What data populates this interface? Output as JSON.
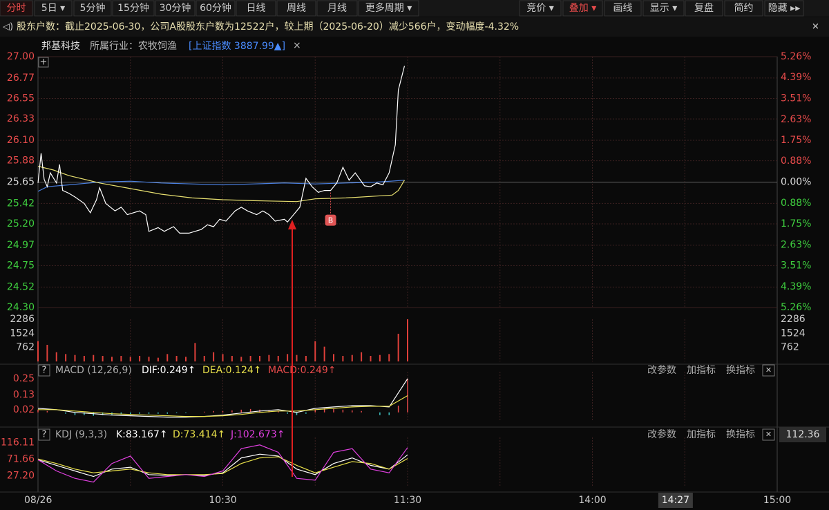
{
  "toolbar": {
    "tabs": [
      "分时",
      "5日 ▾",
      "5分钟",
      "15分钟",
      "30分钟",
      "60分钟",
      "日线",
      "周线",
      "月线",
      "更多周期 ▾"
    ],
    "right_buttons": [
      "竞价 ▾",
      "叠加 ▾",
      "画线",
      "显示 ▾",
      "复盘",
      "简约",
      "隐藏 ▸▸"
    ]
  },
  "notice": {
    "icon": "◁)",
    "text": "股东户数：截止2025-06-30，公司A股股东户数为12522户，较上期（2025-06-20）减少566户，变动幅度-4.32%",
    "close": "✕"
  },
  "stock": {
    "name": "邦基科技",
    "industry": "所属行业：农牧饲渔",
    "index": "[上证指数 3887.99▲]",
    "close": "×",
    "plus": "+"
  },
  "help_icon": "?",
  "close_icon": "✕",
  "chart_data": [
    {
      "type": "line",
      "xlim": [
        0,
        240
      ],
      "xticks": [
        {
          "value": 0,
          "label": "08/26"
        },
        {
          "value": 60,
          "label": "10:30"
        },
        {
          "value": 120,
          "label": "11:30"
        },
        {
          "value": 180,
          "label": "14:00"
        },
        {
          "value": 240,
          "label": "15:00"
        }
      ],
      "xgrid": [
        30,
        60,
        90,
        120,
        150,
        180,
        210
      ],
      "cursor": {
        "value": 207,
        "label": "14:27"
      },
      "ylim": [
        24.3,
        27.0
      ],
      "yticks": [
        {
          "value": 27.0,
          "label": "27.00"
        },
        {
          "value": 26.77,
          "label": "26.77"
        },
        {
          "value": 26.55,
          "label": "26.55"
        },
        {
          "value": 26.33,
          "label": "26.33"
        },
        {
          "value": 26.1,
          "label": "26.10"
        },
        {
          "value": 25.88,
          "label": "25.88"
        },
        {
          "value": 25.65,
          "label": "25.65"
        },
        {
          "value": 25.42,
          "label": "25.42"
        },
        {
          "value": 25.2,
          "label": "25.20"
        },
        {
          "value": 24.97,
          "label": "24.97"
        },
        {
          "value": 24.75,
          "label": "24.75"
        },
        {
          "value": 24.52,
          "label": "24.52"
        },
        {
          "value": 24.3,
          "label": "24.30"
        }
      ],
      "y2lim": [
        -5.26,
        5.26
      ],
      "y2ticks": [
        {
          "value": 5.26,
          "label": "5.26%"
        },
        {
          "value": 4.39,
          "label": "4.39%"
        },
        {
          "value": 3.51,
          "label": "3.51%"
        },
        {
          "value": 2.63,
          "label": "2.63%"
        },
        {
          "value": 1.75,
          "label": "1.75%"
        },
        {
          "value": 0.88,
          "label": "0.88%"
        },
        {
          "value": 0,
          "label": "0.00%"
        },
        {
          "value": -0.88,
          "label": "0.88%"
        },
        {
          "value": -1.75,
          "label": "1.75%"
        },
        {
          "value": -2.63,
          "label": "2.63%"
        },
        {
          "value": -3.51,
          "label": "3.51%"
        },
        {
          "value": -4.39,
          "label": "4.39%"
        },
        {
          "value": -5.26,
          "label": "5.26%"
        }
      ],
      "up_color": "#e84b4b",
      "down_color": "#3fcf3f",
      "flat_color": "#dddddd",
      "series": [
        {
          "color": "#4a7fe0",
          "x": [
            0,
            3,
            10,
            20,
            30,
            40,
            50,
            60,
            70,
            80,
            90,
            100,
            110,
            119
          ],
          "values": [
            25.55,
            25.6,
            25.62,
            25.65,
            25.66,
            25.64,
            25.63,
            25.62,
            25.63,
            25.64,
            25.63,
            25.64,
            25.65,
            25.67
          ]
        },
        {
          "color": "#e8e070",
          "x": [
            0,
            5,
            10,
            20,
            30,
            40,
            50,
            60,
            70,
            84,
            90,
            100,
            110,
            115,
            117,
            119
          ],
          "values": [
            25.82,
            25.78,
            25.72,
            25.64,
            25.58,
            25.52,
            25.48,
            25.46,
            25.45,
            25.44,
            25.47,
            25.48,
            25.5,
            25.51,
            25.56,
            25.67
          ]
        },
        {
          "color": "#ffffff",
          "x": [
            0,
            1,
            2,
            3,
            4,
            6,
            7,
            8,
            10,
            12,
            15,
            17,
            19,
            20,
            22,
            25,
            27,
            29,
            33,
            35,
            36,
            39,
            41,
            44,
            46,
            49,
            53,
            55,
            57,
            59,
            61,
            64,
            66,
            68,
            71,
            73,
            75,
            77,
            80,
            81,
            83,
            85,
            87,
            89,
            91,
            93,
            95,
            97,
            99,
            101,
            103,
            106,
            108,
            110,
            112,
            114,
            116,
            117,
            119
          ],
          "values": [
            25.64,
            25.96,
            25.68,
            25.6,
            25.75,
            25.64,
            25.84,
            25.56,
            25.53,
            25.49,
            25.42,
            25.32,
            25.46,
            25.59,
            25.42,
            25.34,
            25.38,
            25.3,
            25.34,
            25.3,
            25.12,
            25.16,
            25.12,
            25.17,
            25.1,
            25.1,
            25.14,
            25.19,
            25.17,
            25.25,
            25.23,
            25.34,
            25.38,
            25.34,
            25.3,
            25.34,
            25.3,
            25.23,
            25.25,
            25.22,
            25.3,
            25.38,
            25.69,
            25.6,
            25.54,
            25.56,
            25.56,
            25.64,
            25.81,
            25.67,
            25.75,
            25.61,
            25.6,
            25.64,
            25.62,
            25.75,
            26.05,
            26.64,
            26.9
          ]
        }
      ],
      "marker": {
        "label": "B",
        "x": 95,
        "value": 25.24
      }
    },
    {
      "type": "bar",
      "color": "#e0403a",
      "x": [
        0,
        3,
        6,
        9,
        12,
        15,
        18,
        21,
        24,
        27,
        30,
        33,
        36,
        39,
        42,
        45,
        48,
        51,
        54,
        57,
        60,
        63,
        66,
        69,
        72,
        75,
        78,
        81,
        84,
        87,
        90,
        93,
        96,
        99,
        102,
        105,
        108,
        111,
        114,
        117,
        120
      ],
      "values": [
        1100,
        900,
        500,
        400,
        350,
        300,
        350,
        300,
        250,
        300,
        250,
        300,
        250,
        200,
        400,
        300,
        250,
        1000,
        300,
        500,
        400,
        300,
        250,
        300,
        300,
        350,
        300,
        400,
        350,
        300,
        1100,
        800,
        400,
        300,
        350,
        500,
        300,
        350,
        400,
        1500,
        2286
      ],
      "ylim": [
        0,
        2286
      ],
      "yticks": [
        2286,
        1524,
        762
      ],
      "label_color": "#cccccc"
    },
    {
      "type": "macd",
      "title": "MACD (12,26,9)",
      "legend": [
        {
          "label": "DIF:0.249↑",
          "color": "#ffffff"
        },
        {
          "label": "DEA:0.124↑",
          "color": "#e8e04a"
        },
        {
          "label": "MACD:0.249↑",
          "color": "#e84b4b"
        }
      ],
      "buttons": [
        "改参数",
        "加指标",
        "换指标"
      ],
      "ylim": [
        -0.06,
        0.3
      ],
      "yticks": [
        0.25,
        0.13,
        0.02
      ],
      "label_color": "#e84b4b",
      "series": [
        {
          "color": "#ffffff",
          "x": [
            0,
            6,
            12,
            18,
            24,
            30,
            36,
            42,
            48,
            54,
            60,
            66,
            72,
            78,
            84,
            90,
            96,
            102,
            108,
            114,
            120
          ],
          "values": [
            0.03,
            0.02,
            0.0,
            -0.01,
            -0.02,
            -0.025,
            -0.03,
            -0.035,
            -0.035,
            -0.03,
            -0.02,
            -0.005,
            0.01,
            0.02,
            0.0,
            0.03,
            0.04,
            0.05,
            0.05,
            0.04,
            0.249
          ]
        },
        {
          "color": "#e8e04a",
          "x": [
            0,
            6,
            12,
            18,
            24,
            30,
            36,
            42,
            48,
            54,
            60,
            66,
            72,
            78,
            84,
            90,
            96,
            102,
            108,
            114,
            120
          ],
          "values": [
            0.02,
            0.02,
            0.01,
            0.0,
            -0.01,
            -0.015,
            -0.02,
            -0.025,
            -0.03,
            -0.03,
            -0.025,
            -0.015,
            0.0,
            0.01,
            0.01,
            0.02,
            0.03,
            0.04,
            0.045,
            0.045,
            0.124
          ]
        }
      ],
      "bars": {
        "up_color": "#e84b4b",
        "down_color": "#3fc8c8",
        "x": [
          0,
          3,
          6,
          9,
          12,
          15,
          18,
          21,
          24,
          27,
          30,
          33,
          36,
          39,
          42,
          45,
          48,
          51,
          54,
          57,
          60,
          63,
          66,
          69,
          72,
          75,
          78,
          81,
          84,
          87,
          90,
          93,
          96,
          99,
          102,
          105,
          108,
          111,
          114,
          117,
          120
        ],
        "values": [
          0.02,
          0.01,
          0.0,
          -0.01,
          -0.02,
          -0.02,
          -0.025,
          -0.02,
          -0.02,
          -0.015,
          -0.015,
          -0.01,
          -0.01,
          -0.01,
          -0.01,
          -0.005,
          -0.005,
          0.0,
          0.005,
          0.01,
          0.01,
          0.015,
          0.02,
          0.025,
          0.02,
          0.015,
          0.01,
          -0.01,
          -0.02,
          -0.01,
          0.02,
          0.03,
          0.025,
          0.02,
          0.015,
          0.01,
          0.0,
          -0.02,
          -0.02,
          0.05,
          0.249
        ]
      }
    },
    {
      "type": "kdj",
      "title": "KDJ (9,3,3)",
      "legend": [
        {
          "label": "K:83.167↑",
          "color": "#ffffff"
        },
        {
          "label": "D:73.414↑",
          "color": "#e8e04a"
        },
        {
          "label": "J:102.673↑",
          "color": "#e040e0"
        }
      ],
      "buttons": [
        "改参数",
        "加指标",
        "换指标"
      ],
      "current": "112.36",
      "ylim": [
        0,
        130
      ],
      "yticks": [
        116.11,
        71.66,
        {
          "value": 27.2,
          "label": "27.20"
        }
      ],
      "label_color": "#e84b4b",
      "series": [
        {
          "color": "#ffffff",
          "x": [
            0,
            6,
            12,
            18,
            24,
            30,
            36,
            42,
            48,
            54,
            60,
            66,
            72,
            78,
            84,
            90,
            96,
            102,
            108,
            114,
            120
          ],
          "values": [
            70,
            55,
            40,
            25,
            45,
            50,
            30,
            28,
            30,
            28,
            35,
            75,
            85,
            80,
            45,
            30,
            60,
            75,
            55,
            45,
            83.167
          ]
        },
        {
          "color": "#e8e04a",
          "x": [
            0,
            6,
            12,
            18,
            24,
            30,
            36,
            42,
            48,
            54,
            60,
            66,
            72,
            78,
            84,
            90,
            96,
            102,
            108,
            114,
            120
          ],
          "values": [
            72,
            60,
            45,
            35,
            40,
            45,
            35,
            30,
            30,
            30,
            33,
            60,
            75,
            78,
            55,
            35,
            50,
            65,
            60,
            45,
            73.414
          ]
        },
        {
          "color": "#e040e0",
          "x": [
            0,
            6,
            12,
            18,
            24,
            30,
            36,
            42,
            48,
            54,
            60,
            66,
            72,
            78,
            84,
            90,
            96,
            102,
            108,
            114,
            120
          ],
          "values": [
            70,
            40,
            20,
            10,
            60,
            80,
            20,
            25,
            30,
            25,
            40,
            100,
            110,
            90,
            20,
            15,
            90,
            100,
            45,
            35,
            102.673
          ]
        }
      ]
    }
  ]
}
